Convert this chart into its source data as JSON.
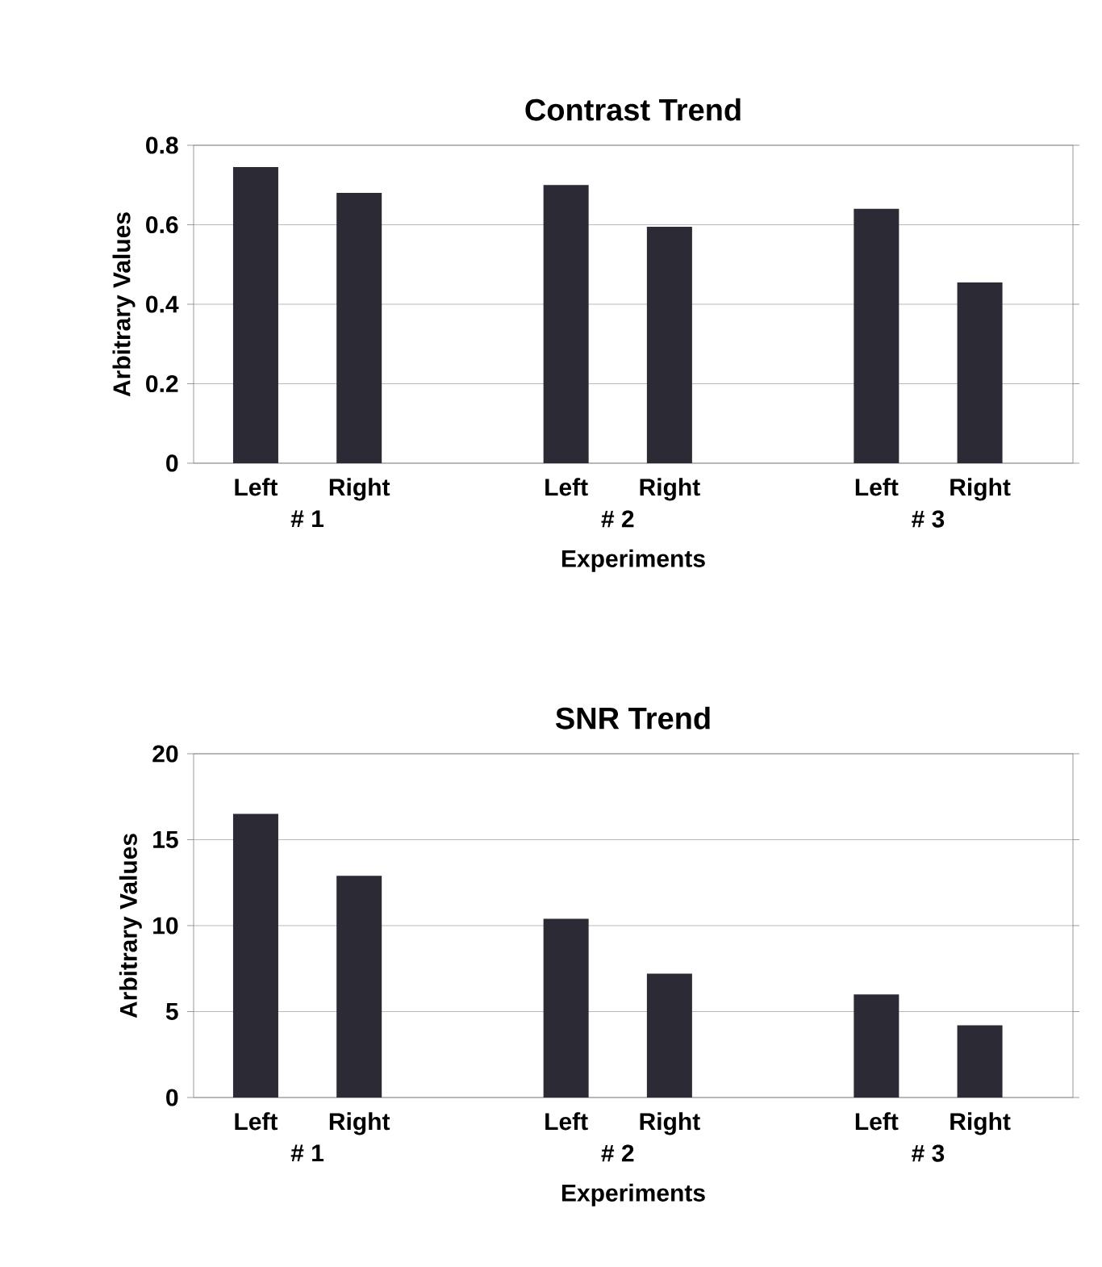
{
  "chart_data": [
    {
      "type": "bar",
      "title": "Contrast Trend",
      "xlabel": "Experiments",
      "ylabel": "Arbitrary Values",
      "categories": [
        "Left",
        "Right",
        null,
        "Left",
        "Right",
        null,
        "Left",
        "Right"
      ],
      "values": [
        0.745,
        0.68,
        null,
        0.7,
        0.595,
        null,
        0.64,
        0.455
      ],
      "color": "#2b2a35",
      "ylim": [
        0,
        0.8
      ],
      "yticks": [
        0,
        0.2,
        0.4,
        0.6,
        0.8
      ],
      "grid": "y",
      "annotations": [
        "# 1",
        "# 2",
        "# 3"
      ]
    },
    {
      "type": "bar",
      "title": "SNR Trend",
      "xlabel": "Experiments",
      "ylabel": "Arbitrary Values",
      "categories": [
        "Left",
        "Right",
        null,
        "Left",
        "Right",
        null,
        "Left",
        "Right"
      ],
      "values": [
        16.5,
        12.9,
        null,
        10.4,
        7.2,
        null,
        6.0,
        4.2
      ],
      "color": "#2b2a35",
      "ylim": [
        0,
        20
      ],
      "yticks": [
        0,
        5,
        10,
        15,
        20
      ],
      "grid": "y",
      "annotations": [
        "# 1",
        "# 2",
        "# 3"
      ]
    }
  ]
}
